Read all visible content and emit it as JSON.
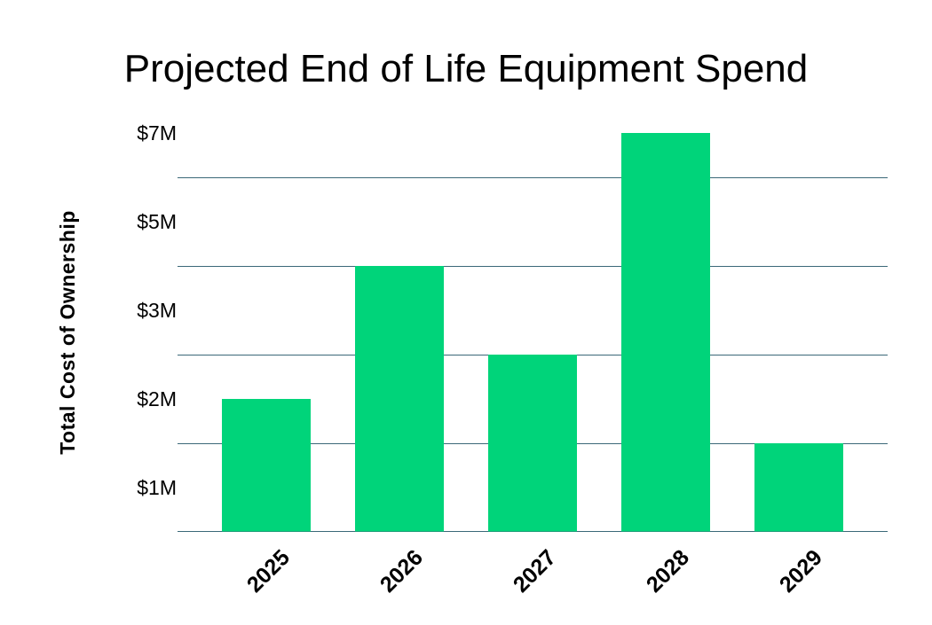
{
  "chart_data": {
    "type": "bar",
    "title": "Projected End of Life Equipment Spend",
    "xlabel": "",
    "ylabel": "Total Cost of Ownership",
    "categories": [
      "2025",
      "2026",
      "2027",
      "2028",
      "2029"
    ],
    "values": [
      2,
      4,
      2.5,
      7,
      1.5
    ],
    "unit": "$M",
    "y_ticks": [
      {
        "value": 1,
        "label": "$1M"
      },
      {
        "value": 2,
        "label": "$2M"
      },
      {
        "value": 3,
        "label": "$3M"
      },
      {
        "value": 5,
        "label": "$5M"
      },
      {
        "value": 7,
        "label": "$7M"
      }
    ],
    "gridlines": [
      0,
      1.5,
      2.5,
      4,
      6
    ],
    "grid": true,
    "legend": "none",
    "colors": {
      "bar": "#00D47A",
      "grid": "#3B6878"
    }
  }
}
